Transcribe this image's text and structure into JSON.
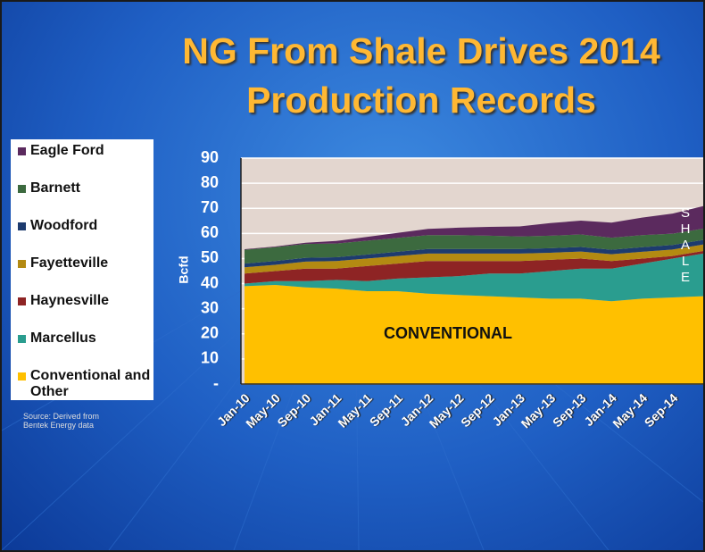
{
  "chart_data": {
    "type": "stacked_area",
    "title": "NG From Shale Drives 2014 Production Records",
    "y_label": "Bcfd",
    "source": "Source: Derived from Bentek Energy data",
    "annotations": [
      "CONVENTIONAL",
      "SHALE"
    ],
    "categories": [
      "Jan-10",
      "May-10",
      "Sep-10",
      "Jan-11",
      "May-11",
      "Sep-11",
      "Jan-12",
      "May-12",
      "Sep-12",
      "Jan-13",
      "May-13",
      "Sep-13",
      "Jan-14",
      "May-14",
      "Sep-14",
      null
    ],
    "ylim": [
      0,
      90
    ],
    "yticks": [
      {
        "value": 0,
        "label": "-"
      },
      10,
      20,
      30,
      40,
      50,
      60,
      70,
      80,
      90
    ],
    "grid": true,
    "series": [
      {
        "name": "Eagle Ford",
        "color": "#5b2a5e",
        "values": [
          0.2,
          0.3,
          0.5,
          1,
          1.5,
          2,
          2.5,
          3,
          3.5,
          4,
          5,
          5.5,
          6,
          7,
          8,
          9
        ]
      },
      {
        "name": "Barnett",
        "color": "#3c6a3f",
        "values": [
          5.5,
          5.5,
          5.5,
          5.5,
          5.5,
          5.5,
          5.5,
          5.5,
          5.3,
          5,
          5,
          5,
          4.8,
          4.8,
          4.5,
          4.5
        ]
      },
      {
        "name": "Woodford",
        "color": "#1d3b6e",
        "values": [
          1.5,
          1.5,
          1.5,
          1.5,
          1.6,
          1.7,
          1.8,
          1.8,
          1.8,
          1.8,
          1.8,
          1.8,
          1.8,
          1.8,
          1.8,
          1.8
        ]
      },
      {
        "name": "Fayetteville",
        "color": "#b38a12",
        "values": [
          2.5,
          2.5,
          2.8,
          3,
          3,
          3,
          3,
          3,
          3,
          3,
          2.8,
          2.8,
          2.7,
          2.7,
          2.6,
          2.6
        ]
      },
      {
        "name": "Haynesville",
        "color": "#8e2424",
        "values": [
          4,
          4,
          5,
          4.5,
          6,
          6,
          6.5,
          6,
          5,
          5,
          4.5,
          4,
          3,
          2,
          1,
          1
        ]
      },
      {
        "name": "Marcellus",
        "color": "#2a9d8f",
        "values": [
          1,
          1.5,
          2.5,
          3.5,
          4,
          5,
          6.5,
          7.5,
          9,
          9.5,
          11,
          12,
          13,
          14,
          15.5,
          17
        ]
      },
      {
        "name": "Conventional and Other",
        "color": "#ffc000",
        "values": [
          39,
          39.5,
          38.5,
          38,
          37,
          37,
          36,
          35.5,
          35,
          34.5,
          34,
          34,
          33,
          34,
          34.5,
          35
        ]
      }
    ]
  }
}
